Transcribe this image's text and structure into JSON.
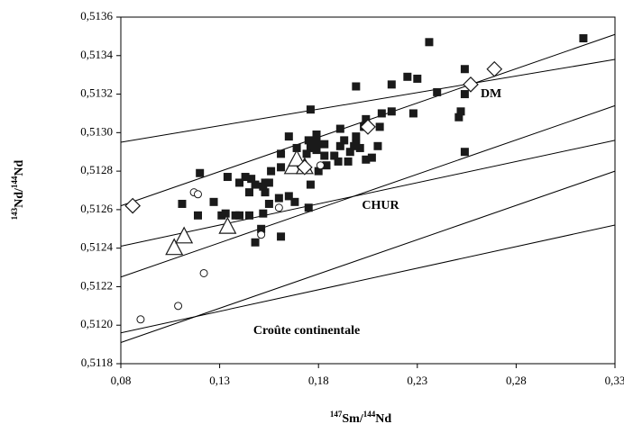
{
  "chart_data": {
    "type": "scatter",
    "x_label": [
      {
        "text": "147",
        "sup": true
      },
      {
        "text": "Sm/",
        "sup": false
      },
      {
        "text": "144",
        "sup": true
      },
      {
        "text": "Nd",
        "sup": false
      }
    ],
    "y_label": [
      {
        "text": "143",
        "sup": true
      },
      {
        "text": "Nd/",
        "sup": false
      },
      {
        "text": "144",
        "sup": true
      },
      {
        "text": "Nd",
        "sup": false
      }
    ],
    "xlim": [
      0.08,
      0.33
    ],
    "ylim": [
      0.5118,
      0.5136
    ],
    "xticks": [
      {
        "value": 0.08,
        "label": "0,08"
      },
      {
        "value": 0.13,
        "label": "0,13"
      },
      {
        "value": 0.18,
        "label": "0,18"
      },
      {
        "value": 0.23,
        "label": "0,23"
      },
      {
        "value": 0.28,
        "label": "0,28"
      },
      {
        "value": 0.33,
        "label": "0,33"
      }
    ],
    "yticks": [
      {
        "value": 0.5118,
        "label": "0,5118"
      },
      {
        "value": 0.512,
        "label": "0,5120"
      },
      {
        "value": 0.5122,
        "label": "0,5122"
      },
      {
        "value": 0.5124,
        "label": "0,5124"
      },
      {
        "value": 0.5126,
        "label": "0,5126"
      },
      {
        "value": 0.5128,
        "label": "0,5128"
      },
      {
        "value": 0.513,
        "label": "0,5130"
      },
      {
        "value": 0.5132,
        "label": "0,5132"
      },
      {
        "value": 0.5134,
        "label": "0,5134"
      },
      {
        "value": 0.5136,
        "label": "0,5136"
      }
    ],
    "lines": [
      {
        "x": [
          0.08,
          0.33
        ],
        "y": [
          0.51295,
          0.51338
        ]
      },
      {
        "x": [
          0.08,
          0.33
        ],
        "y": [
          0.51262,
          0.51351
        ]
      },
      {
        "x": [
          0.08,
          0.33
        ],
        "y": [
          0.51241,
          0.51296
        ]
      },
      {
        "x": [
          0.08,
          0.33
        ],
        "y": [
          0.51225,
          0.51314
        ]
      },
      {
        "x": [
          0.08,
          0.33
        ],
        "y": [
          0.51191,
          0.5128
        ]
      },
      {
        "x": [
          0.08,
          0.33
        ],
        "y": [
          0.51196,
          0.51252
        ]
      }
    ],
    "annotations": [
      {
        "text": "DM",
        "x": 0.262,
        "y": 0.5132
      },
      {
        "text": "CHUR",
        "x": 0.202,
        "y": 0.51262
      },
      {
        "text": "Croûte continentale",
        "x": 0.147,
        "y": 0.51197
      }
    ],
    "series": [
      {
        "marker": "square",
        "color": "#1a1a1a",
        "x": [
          0.314,
          0.236,
          0.254,
          0.23,
          0.225,
          0.217,
          0.199,
          0.24,
          0.254,
          0.252,
          0.217,
          0.228,
          0.212,
          0.176,
          0.199,
          0.204,
          0.203,
          0.199,
          0.191,
          0.193,
          0.198,
          0.201,
          0.179,
          0.179,
          0.175,
          0.179,
          0.183,
          0.183,
          0.191,
          0.188,
          0.19,
          0.184,
          0.18,
          0.176,
          0.174,
          0.171,
          0.168,
          0.169,
          0.165,
          0.161,
          0.161,
          0.156,
          0.153,
          0.145,
          0.143,
          0.14,
          0.146,
          0.148,
          0.152,
          0.155,
          0.153,
          0.134,
          0.127,
          0.131,
          0.133,
          0.145,
          0.138,
          0.152,
          0.16,
          0.165,
          0.168,
          0.155,
          0.148,
          0.151,
          0.161,
          0.12,
          0.119,
          0.111,
          0.254,
          0.251,
          0.21,
          0.207,
          0.211,
          0.195,
          0.204,
          0.196,
          0.176,
          0.175,
          0.14
        ],
        "y": [
          0.51349,
          0.51347,
          0.51333,
          0.51328,
          0.51329,
          0.51325,
          0.51324,
          0.51321,
          0.5132,
          0.51311,
          0.51311,
          0.5131,
          0.5131,
          0.51312,
          0.51298,
          0.51307,
          0.51303,
          0.51294,
          0.51302,
          0.51296,
          0.51293,
          0.51292,
          0.51299,
          0.51295,
          0.51296,
          0.51291,
          0.51294,
          0.51288,
          0.51293,
          0.51288,
          0.51285,
          0.51283,
          0.5128,
          0.51292,
          0.51289,
          0.51283,
          0.51282,
          0.51292,
          0.51298,
          0.51289,
          0.51282,
          0.5128,
          0.51274,
          0.51269,
          0.51277,
          0.51274,
          0.51276,
          0.51273,
          0.51272,
          0.51274,
          0.51269,
          0.51277,
          0.51264,
          0.51257,
          0.51258,
          0.51257,
          0.51257,
          0.51258,
          0.51266,
          0.51267,
          0.51264,
          0.51263,
          0.51243,
          0.5125,
          0.51246,
          0.51279,
          0.51257,
          0.51263,
          0.5129,
          0.51308,
          0.51293,
          0.51287,
          0.51303,
          0.51285,
          0.51286,
          0.5129,
          0.51273,
          0.51261,
          0.51257
        ]
      },
      {
        "marker": "circle",
        "color": "#1a1a1a",
        "x": [
          0.117,
          0.119,
          0.16,
          0.151,
          0.122,
          0.109,
          0.09,
          0.181
        ],
        "y": [
          0.51269,
          0.51268,
          0.51261,
          0.51247,
          0.51227,
          0.5121,
          0.51203,
          0.51283
        ]
      },
      {
        "marker": "triangle",
        "color": "#1a1a1a",
        "x": [
          0.107,
          0.112,
          0.134,
          0.167,
          0.169,
          0.173
        ],
        "y": [
          0.5124,
          0.51246,
          0.51251,
          0.51282,
          0.51286,
          0.51282
        ]
      },
      {
        "marker": "diamond",
        "color": "#1a1a1a",
        "x": [
          0.086,
          0.173,
          0.205,
          0.257,
          0.269
        ],
        "y": [
          0.51262,
          0.51282,
          0.51303,
          0.51325,
          0.51333
        ]
      }
    ]
  }
}
